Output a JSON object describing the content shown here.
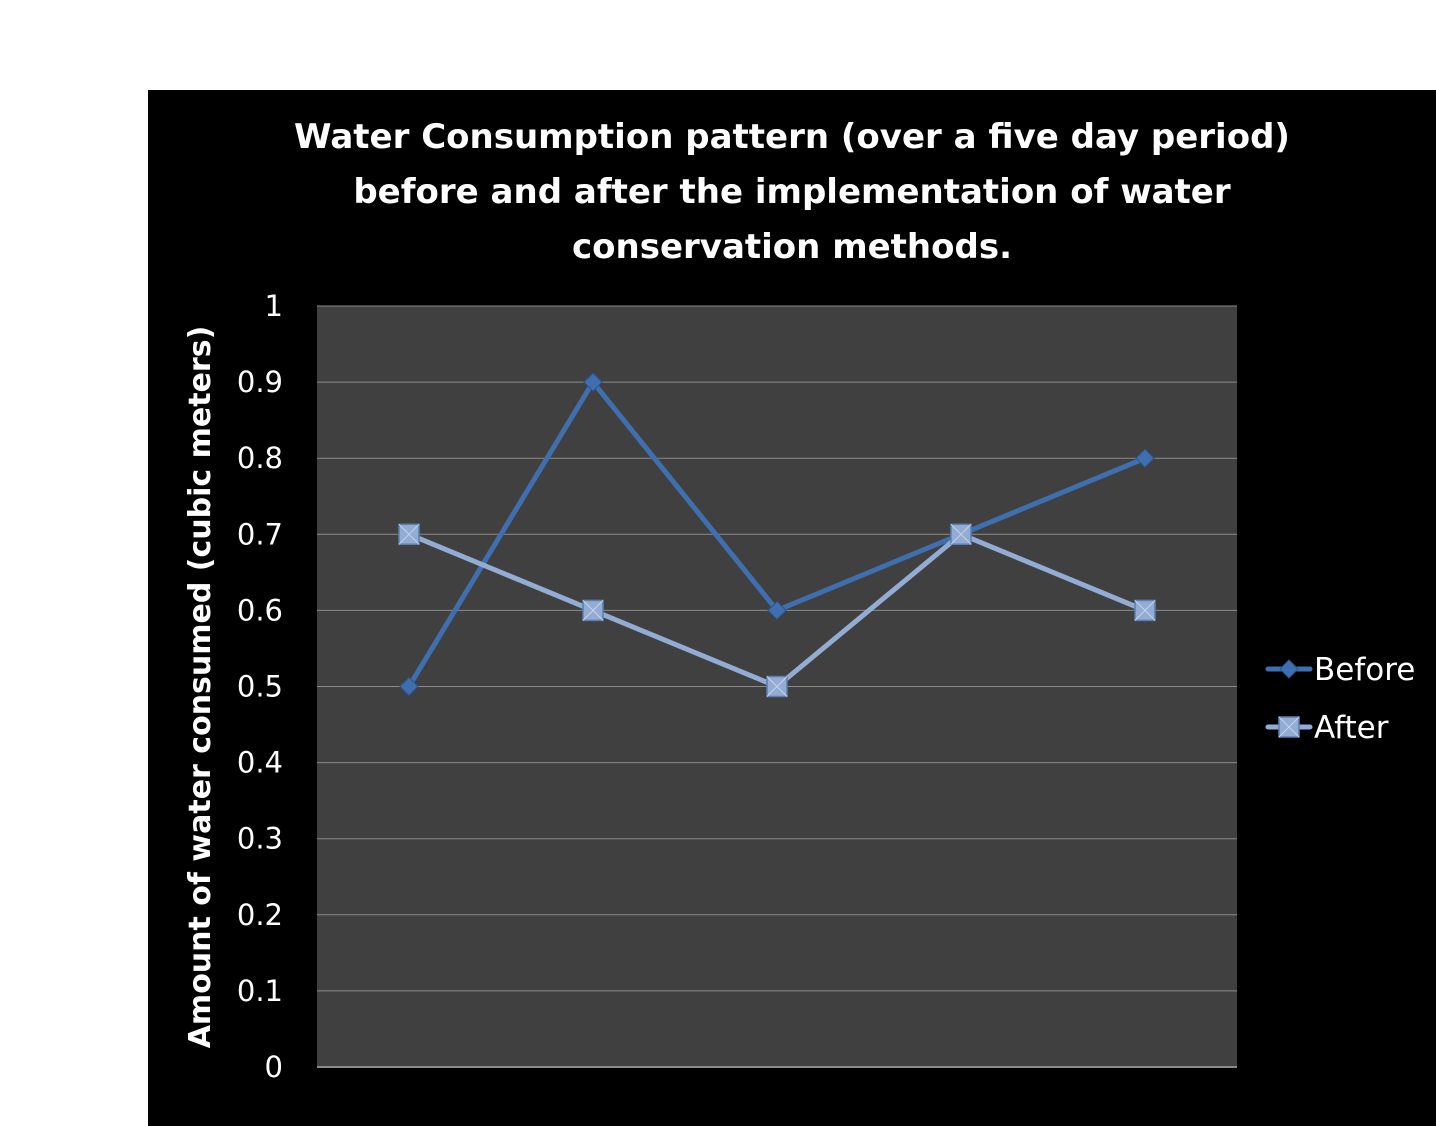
{
  "chart_data": {
    "type": "line",
    "title_lines": [
      "Water Consumption pattern (over a five day period)",
      "before and after the implementation of water",
      "conservation methods."
    ],
    "xlabel": "",
    "ylabel": "Amount of water consumed (cubic meters)",
    "categories": [
      "",
      "",
      "",
      "",
      ""
    ],
    "ylim": [
      0,
      1
    ],
    "yticks": [
      "0",
      "0.1",
      "0.2",
      "0.3",
      "0.4",
      "0.5",
      "0.6",
      "0.7",
      "0.8",
      "0.9",
      "1"
    ],
    "grid": true,
    "legend_position": "right",
    "plot_background": "#404040",
    "background": "#000000",
    "series": [
      {
        "name": "Before",
        "values": [
          0.5,
          0.9,
          0.6,
          0.7,
          0.8
        ],
        "color": "#3f6fae",
        "marker": "diamond"
      },
      {
        "name": "After",
        "values": [
          0.7,
          0.6,
          0.5,
          0.7,
          0.6
        ],
        "color": "#93acd3",
        "marker": "square"
      }
    ]
  }
}
